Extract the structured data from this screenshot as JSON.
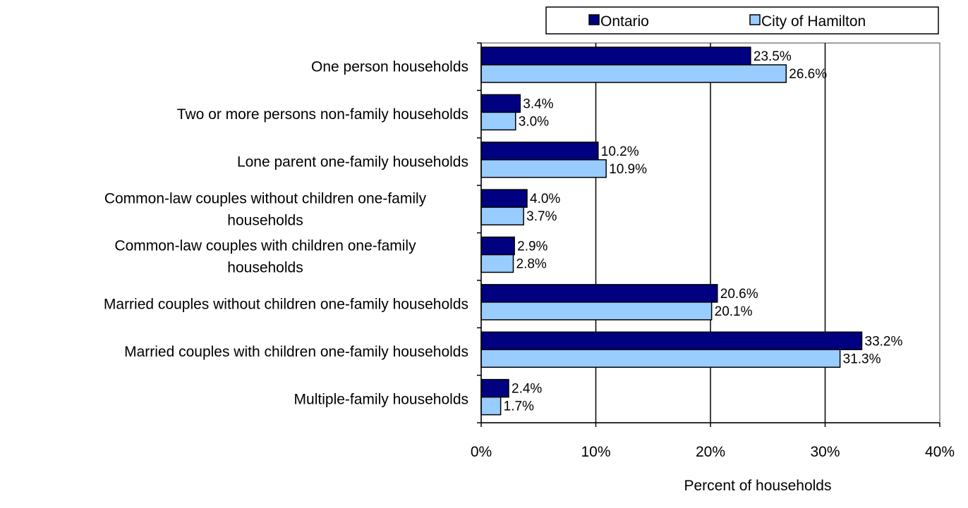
{
  "chart_data": {
    "type": "bar",
    "orientation": "horizontal",
    "categories": [
      [
        "One person households"
      ],
      [
        "Two or more persons non-family households"
      ],
      [
        "Lone parent one-family households"
      ],
      [
        "Common-law couples without children one-family",
        "households"
      ],
      [
        "Common-law couples with children one-family",
        "households"
      ],
      [
        "Married couples without children one-family households"
      ],
      [
        "Married couples with children one-family households"
      ],
      [
        "Multiple-family households"
      ]
    ],
    "series": [
      {
        "name": "Ontario",
        "color": "#000080",
        "values": [
          23.5,
          3.4,
          10.2,
          4.0,
          2.9,
          20.6,
          33.2,
          2.4
        ],
        "labels": [
          "23.5%",
          "3.4%",
          "10.2%",
          "4.0%",
          "2.9%",
          "20.6%",
          "33.2%",
          "2.4%"
        ]
      },
      {
        "name": "City of Hamilton",
        "color": "#99ccff",
        "values": [
          26.6,
          3.0,
          10.9,
          3.7,
          2.8,
          20.1,
          31.3,
          1.7
        ],
        "labels": [
          "26.6%",
          "3.0%",
          "10.9%",
          "3.7%",
          "2.8%",
          "20.1%",
          "31.3%",
          "1.7%"
        ]
      }
    ],
    "xlim": [
      0,
      40
    ],
    "xticks": [
      0,
      10,
      20,
      30,
      40
    ],
    "xtick_labels": [
      "0%",
      "10%",
      "20%",
      "30%",
      "40%"
    ],
    "xlabel": "Percent of households",
    "ylabel": "",
    "grid": "vertical",
    "legend": "top-right"
  }
}
